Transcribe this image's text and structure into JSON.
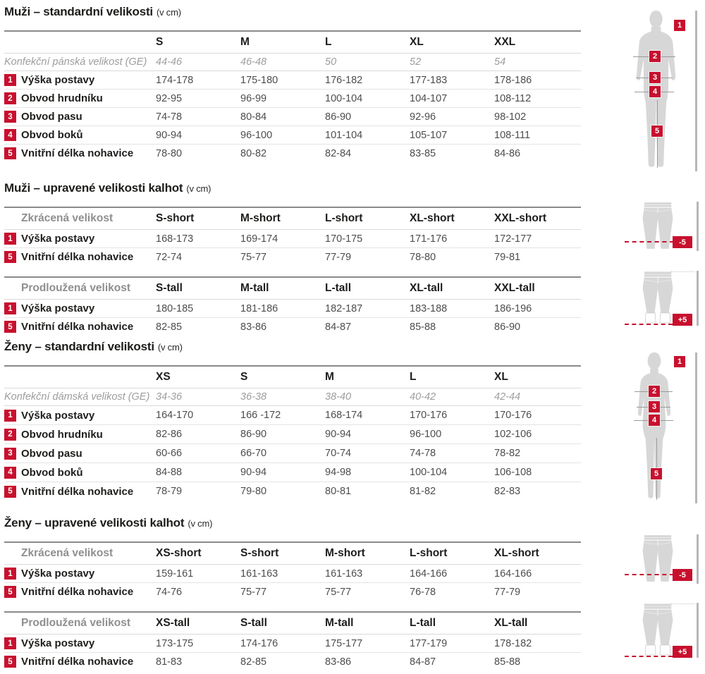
{
  "colors": {
    "accent_red": "#c8102e",
    "title_text": "#1d1d1b",
    "value_text": "#4d4d4d",
    "muted_text": "#9d9d9c",
    "rule_dark": "#8a8a8a",
    "rule_light": "#e4e4e4",
    "silhouette_gray": "#d7d7d7"
  },
  "sections": [
    {
      "id": "men-standard",
      "title": "Muži – standardní velikosti",
      "unit": "(v cm)",
      "tables": [
        {
          "header_label": "",
          "columns": [
            "S",
            "M",
            "L",
            "XL",
            "XXL"
          ],
          "subheader": {
            "label": "Konfekční pánská velikost (GE)",
            "values": [
              "44-46",
              "46-48",
              "50",
              "52",
              "54"
            ]
          },
          "rows": [
            {
              "num": "1",
              "label": "Výška postavy",
              "values": [
                "174-178",
                "175-180",
                "176-182",
                "177-183",
                "178-186"
              ]
            },
            {
              "num": "2",
              "label": "Obvod hrudníku",
              "values": [
                "92-95",
                "96-99",
                "100-104",
                "104-107",
                "108-112"
              ]
            },
            {
              "num": "3",
              "label": "Obvod pasu",
              "values": [
                "74-78",
                "80-84",
                "86-90",
                "92-96",
                "98-102"
              ]
            },
            {
              "num": "4",
              "label": "Obvod boků",
              "values": [
                "90-94",
                "96-100",
                "101-104",
                "105-107",
                "108-111"
              ]
            },
            {
              "num": "5",
              "label": "Vnitřní délka nohavice",
              "values": [
                "78-80",
                "80-82",
                "82-84",
                "83-85",
                "84-86"
              ]
            }
          ]
        }
      ]
    },
    {
      "id": "men-adjusted-pants",
      "title": "Muži – upravené velikosti kalhot",
      "unit": "(v cm)",
      "tables": [
        {
          "header_label": "Zkrácená velikost",
          "columns": [
            "S-short",
            "M-short",
            "L-short",
            "XL-short",
            "XXL-short"
          ],
          "rows": [
            {
              "num": "1",
              "label": "Výška postavy",
              "values": [
                "168-173",
                "169-174",
                "170-175",
                "171-176",
                "172-177"
              ]
            },
            {
              "num": "5",
              "label": "Vnitřní délka nohavice",
              "values": [
                "72-74",
                "75-77",
                "77-79",
                "78-80",
                "79-81"
              ]
            }
          ]
        },
        {
          "header_label": "Prodloužená velikost",
          "columns": [
            "S-tall",
            "M-tall",
            "L-tall",
            "XL-tall",
            "XXL-tall"
          ],
          "rows": [
            {
              "num": "1",
              "label": "Výška postavy",
              "values": [
                "180-185",
                "181-186",
                "182-187",
                "183-188",
                "186-196"
              ]
            },
            {
              "num": "5",
              "label": "Vnitřní délka nohavice",
              "values": [
                "82-85",
                "83-86",
                "84-87",
                "85-88",
                "86-90"
              ]
            }
          ]
        }
      ]
    },
    {
      "id": "women-standard",
      "title": "Ženy – standardní velikosti",
      "unit": "(v cm)",
      "tables": [
        {
          "header_label": "",
          "columns": [
            "XS",
            "S",
            "M",
            "L",
            "XL"
          ],
          "subheader": {
            "label": "Konfekční dámská velikost (GE)",
            "values": [
              "34-36",
              "36-38",
              "38-40",
              "40-42",
              "42-44"
            ]
          },
          "rows": [
            {
              "num": "1",
              "label": "Výška postavy",
              "values": [
                "164-170",
                "166 -172",
                "168-174",
                "170-176",
                "170-176"
              ]
            },
            {
              "num": "2",
              "label": "Obvod hrudníku",
              "values": [
                "82-86",
                "86-90",
                "90-94",
                "96-100",
                "102-106"
              ]
            },
            {
              "num": "3",
              "label": "Obvod pasu",
              "values": [
                "60-66",
                "66-70",
                "70-74",
                "74-78",
                "78-82"
              ]
            },
            {
              "num": "4",
              "label": "Obvod boků",
              "values": [
                "84-88",
                "90-94",
                "94-98",
                "100-104",
                "106-108"
              ]
            },
            {
              "num": "5",
              "label": "Vnitřní délka nohavice",
              "values": [
                "78-79",
                "79-80",
                "80-81",
                "81-82",
                "82-83"
              ]
            }
          ]
        }
      ]
    },
    {
      "id": "women-adjusted-pants",
      "title": "Ženy – upravené velikosti kalhot",
      "unit": "(v cm)",
      "tables": [
        {
          "header_label": "Zkrácená velikost",
          "columns": [
            "XS-short",
            "S-short",
            "M-short",
            "L-short",
            "XL-short"
          ],
          "rows": [
            {
              "num": "1",
              "label": "Výška postavy",
              "values": [
                "159-161",
                "161-163",
                "161-163",
                "164-166",
                "164-166"
              ]
            },
            {
              "num": "5",
              "label": "Vnitřní délka nohavice",
              "values": [
                "74-76",
                "75-77",
                "75-77",
                "76-78",
                "77-79"
              ]
            }
          ]
        },
        {
          "header_label": "Prodloužená velikost",
          "columns": [
            "XS-tall",
            "S-tall",
            "M-tall",
            "L-tall",
            "XL-tall"
          ],
          "rows": [
            {
              "num": "1",
              "label": "Výška postavy",
              "values": [
                "173-175",
                "174-176",
                "175-177",
                "177-179",
                "178-182"
              ]
            },
            {
              "num": "5",
              "label": "Vnitřní délka nohavice",
              "values": [
                "81-83",
                "82-85",
                "83-86",
                "84-87",
                "85-88"
              ]
            }
          ]
        }
      ]
    }
  ],
  "figures": {
    "body_badges": [
      "1",
      "2",
      "3",
      "4",
      "5"
    ],
    "short_badge": "-5",
    "tall_badge": "+5"
  }
}
